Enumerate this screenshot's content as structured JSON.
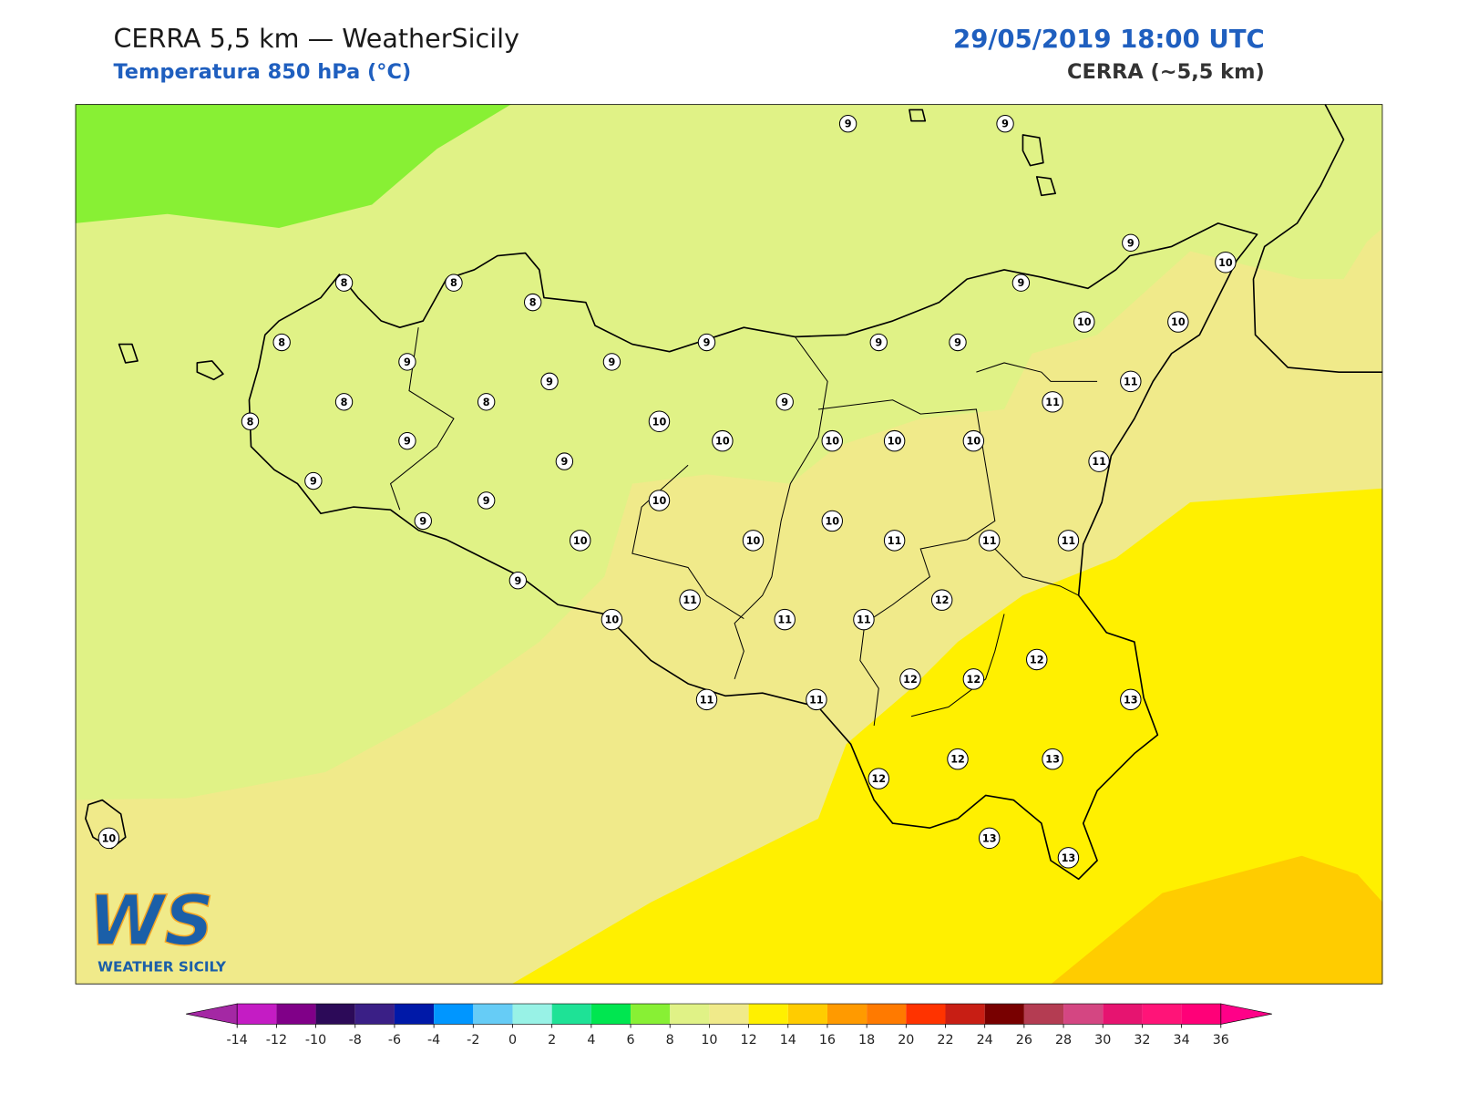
{
  "header": {
    "title": "CERRA 5,5 km — WeatherSicily",
    "subtitle": "Temperatura 850 hPa (°C)",
    "datetime": "29/05/2019 18:00 UTC",
    "model": "CERRA (~5,5 km)"
  },
  "stations": [
    9,
    9,
    9,
    10,
    8,
    8,
    8,
    9,
    10,
    10,
    8,
    9,
    9,
    9,
    9,
    9,
    9,
    11,
    8,
    8,
    9,
    11,
    8,
    10,
    9,
    10,
    10,
    10,
    10,
    9,
    11,
    9,
    9,
    10,
    9,
    10,
    10,
    10,
    11,
    11,
    11,
    9,
    11,
    12,
    10,
    11,
    11,
    12,
    12,
    12,
    13,
    11,
    11,
    12,
    13,
    12,
    13,
    13,
    10
  ],
  "colorbar": {
    "ticks": [
      -14,
      -12,
      -10,
      -8,
      -6,
      -4,
      -2,
      0,
      2,
      4,
      6,
      8,
      10,
      12,
      14,
      16,
      18,
      20,
      22,
      24,
      26,
      28,
      30,
      32,
      34,
      36
    ],
    "colors": [
      "#c41cc4",
      "#800088",
      "#2c0a58",
      "#3a1f86",
      "#0019a8",
      "#0096ff",
      "#66ccf6",
      "#98f2e6",
      "#1ee296",
      "#00e650",
      "#88f034",
      "#e0f286",
      "#f0ea8a",
      "#fff000",
      "#ffcc00",
      "#ff9a00",
      "#ff7a00",
      "#ff3300",
      "#c81e14",
      "#780000",
      "#b43c52",
      "#d44682",
      "#e61470",
      "#ff1478",
      "#ff0078"
    ],
    "under": "#a428a4",
    "over": "#ff0088"
  },
  "logo": {
    "mark": "WS",
    "text": "WEATHER SICILY"
  }
}
